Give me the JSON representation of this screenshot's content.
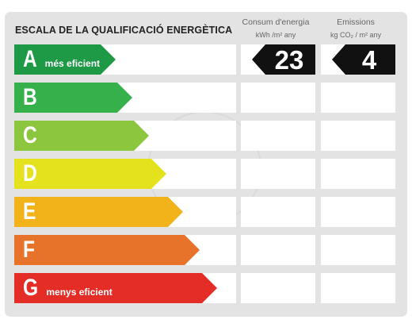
{
  "header": {
    "scale_title": "ESCALA DE LA QUALIFICACIÓ ENERGÈTICA",
    "consumption_title": "Consum d'energia",
    "consumption_unit": "kWh /m² any",
    "emissions_title": "Emissions",
    "emissions_unit": "kg CO₂ / m² any"
  },
  "ratings": [
    {
      "letter": "A",
      "desc": "més eficient",
      "color": "#1e9a47"
    },
    {
      "letter": "B",
      "desc": "",
      "color": "#35b04a"
    },
    {
      "letter": "C",
      "desc": "",
      "color": "#8cc63f"
    },
    {
      "letter": "D",
      "desc": "",
      "color": "#e4e21c"
    },
    {
      "letter": "E",
      "desc": "",
      "color": "#f2b21a"
    },
    {
      "letter": "F",
      "desc": "",
      "color": "#e7722a"
    },
    {
      "letter": "G",
      "desc": "menys eficient",
      "color": "#e42d26"
    }
  ],
  "consumption": {
    "value": "23",
    "rating": "A"
  },
  "emissions": {
    "value": "4",
    "rating": "A"
  }
}
